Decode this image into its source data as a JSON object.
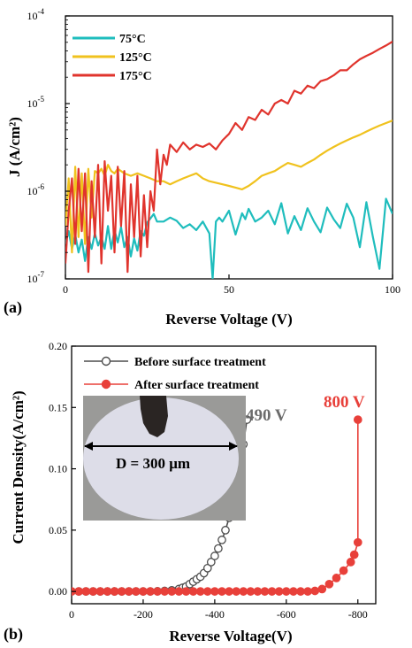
{
  "chart_data": [
    {
      "type": "line",
      "panel_label": "(a)",
      "xlabel": "Reverse Voltage (V)",
      "ylabel": "J (A/cm²)",
      "xlim": [
        0,
        100
      ],
      "ylim": [
        1e-07,
        0.0001
      ],
      "yscale": "log",
      "x_ticks": [
        "0",
        "50",
        "100"
      ],
      "x_tick_values": [
        0,
        50,
        100
      ],
      "y_ticks": [
        {
          "base": "10",
          "exp": "-7",
          "value": 1e-07
        },
        {
          "base": "10",
          "exp": "-6",
          "value": 1e-06
        },
        {
          "base": "10",
          "exp": "-5",
          "value": 1e-05
        },
        {
          "base": "10",
          "exp": "-4",
          "value": 0.0001
        }
      ],
      "legend_position": "top-left",
      "series": [
        {
          "name": "75°C",
          "color": "#1fbdbd",
          "x": [
            0,
            1,
            2,
            3,
            4,
            5,
            6,
            7,
            8,
            9,
            10,
            11,
            12,
            13,
            14,
            15,
            16,
            17,
            18,
            19,
            20,
            21,
            22,
            23,
            24,
            25,
            26,
            27,
            28,
            30,
            32,
            34,
            36,
            38,
            40,
            42,
            44,
            45,
            46,
            47,
            48,
            50,
            52,
            54,
            55,
            56,
            58,
            60,
            62,
            64,
            66,
            68,
            70,
            72,
            74,
            76,
            78,
            80,
            82,
            84,
            86,
            88,
            90,
            92,
            94,
            96,
            98,
            100
          ],
          "y": [
            2.5e-07,
            3.5e-07,
            2.2e-07,
            3.2e-07,
            2e-07,
            2.8e-07,
            1.6e-07,
            3e-07,
            2.2e-07,
            3.3e-07,
            2.4e-07,
            3e-07,
            2.2e-07,
            4e-07,
            2.2e-07,
            3.6e-07,
            2.6e-07,
            3.9e-07,
            2.3e-07,
            3e-07,
            1.8e-07,
            2.9e-07,
            2.1e-07,
            3.5e-07,
            3.1e-07,
            4.4e-07,
            4.9e-07,
            5.5e-07,
            4.5e-07,
            4.5e-07,
            5e-07,
            4.6e-07,
            3.8e-07,
            4.2e-07,
            3.6e-07,
            4.5e-07,
            3.3e-07,
            1e-07,
            4.5e-07,
            5e-07,
            4.5e-07,
            6e-07,
            3.2e-07,
            5.6e-07,
            4.8e-07,
            6.3e-07,
            4.5e-07,
            5e-07,
            6e-07,
            4.2e-07,
            7.3e-07,
            3.3e-07,
            5.2e-07,
            3.6e-07,
            6.4e-07,
            4.5e-07,
            3.4e-07,
            6.5e-07,
            4.8e-07,
            3.8e-07,
            7.2e-07,
            5e-07,
            2.3e-07,
            7.5e-07,
            3e-07,
            1.3e-07,
            8.2e-07,
            5.5e-07
          ]
        },
        {
          "name": "125°C",
          "color": "#f0c21e",
          "x": [
            0,
            1,
            2,
            3,
            4,
            5,
            6,
            7,
            8,
            9,
            10,
            11,
            12,
            13,
            14,
            15,
            16,
            18,
            20,
            22,
            24,
            26,
            28,
            30,
            32,
            34,
            36,
            38,
            40,
            42,
            44,
            46,
            48,
            50,
            52,
            54,
            56,
            58,
            60,
            62,
            64,
            66,
            68,
            70,
            72,
            74,
            76,
            78,
            80,
            82,
            84,
            86,
            88,
            90,
            92,
            94,
            96,
            98,
            100
          ],
          "y": [
            4e-07,
            1.4e-06,
            2e-07,
            1.9e-06,
            3e-07,
            1.6e-06,
            2.5e-07,
            1.8e-06,
            5e-07,
            1.7e-06,
            1.6e-06,
            1.8e-06,
            1.5e-06,
            2e-06,
            1.7e-06,
            1.6e-06,
            1.8e-06,
            1.6e-06,
            1.5e-06,
            1.6e-06,
            1.5e-06,
            1.4e-06,
            1.3e-06,
            1.3e-06,
            1.2e-06,
            1.3e-06,
            1.4e-06,
            1.5e-06,
            1.6e-06,
            1.4e-06,
            1.3e-06,
            1.25e-06,
            1.2e-06,
            1.15e-06,
            1.1e-06,
            1.05e-06,
            1.15e-06,
            1.3e-06,
            1.5e-06,
            1.6e-06,
            1.7e-06,
            1.9e-06,
            2.1e-06,
            2e-06,
            1.9e-06,
            2.1e-06,
            2.3e-06,
            2.6e-06,
            2.9e-06,
            3.2e-06,
            3.5e-06,
            3.8e-06,
            4.1e-06,
            4.4e-06,
            4.8e-06,
            5.2e-06,
            5.6e-06,
            6e-06,
            6.4e-06
          ]
        },
        {
          "name": "175°C",
          "color": "#e0342d",
          "x": [
            0,
            1,
            2,
            3,
            4,
            5,
            6,
            7,
            8,
            9,
            10,
            11,
            12,
            13,
            14,
            15,
            16,
            17,
            18,
            19,
            20,
            21,
            22,
            23,
            24,
            25,
            26,
            27,
            28,
            29,
            30,
            31,
            32,
            34,
            36,
            38,
            40,
            42,
            44,
            46,
            48,
            50,
            52,
            54,
            56,
            58,
            60,
            62,
            64,
            66,
            68,
            70,
            72,
            74,
            76,
            78,
            80,
            82,
            84,
            86,
            88,
            90,
            92,
            94,
            96,
            98,
            100
          ],
          "y": [
            1.5e-07,
            6e-07,
            1.4e-06,
            2.5e-07,
            1.8e-06,
            3.5e-07,
            1.6e-06,
            1.2e-07,
            1.3e-06,
            3e-07,
            2e-06,
            1.5e-07,
            2.2e-06,
            6e-07,
            1.5e-06,
            2e-07,
            1.9e-06,
            4e-07,
            1.7e-06,
            1.2e-07,
            1.2e-06,
            3e-07,
            1.5e-06,
            1.8e-07,
            9e-07,
            2.3e-07,
            1e-06,
            6e-07,
            3e-06,
            1.2e-06,
            2.6e-06,
            2e-06,
            3.4e-06,
            2.8e-06,
            3.6e-06,
            3e-06,
            3.4e-06,
            3.2e-06,
            3.5e-06,
            3e-06,
            3.8e-06,
            4.5e-06,
            6e-06,
            5e-06,
            7e-06,
            6.5e-06,
            8.5e-06,
            7.5e-06,
            1e-05,
            1.1e-05,
            1e-05,
            1.4e-05,
            1.3e-05,
            1.6e-05,
            1.5e-05,
            1.8e-05,
            1.9e-05,
            2.1e-05,
            2.4e-05,
            2.4e-05,
            2.8e-05,
            3.2e-05,
            3.5e-05,
            3.8e-05,
            4.2e-05,
            4.6e-05,
            5.1e-05
          ]
        }
      ]
    },
    {
      "type": "scatter",
      "panel_label": "(b)",
      "xlabel": "Reverse Voltage(V)",
      "ylabel": "Current Density(A/cm²)",
      "xlim": [
        0,
        -850
      ],
      "ylim": [
        -0.01,
        0.2
      ],
      "x_ticks": [
        "0",
        "-200",
        "-400",
        "-600",
        "-800"
      ],
      "x_tick_values": [
        0,
        -200,
        -400,
        -600,
        -800
      ],
      "y_ticks": [
        "0.00",
        "0.05",
        "0.10",
        "0.15",
        "0.20"
      ],
      "y_tick_values": [
        0,
        0.05,
        0.1,
        0.15,
        0.2
      ],
      "legend_position": "top-right",
      "series": [
        {
          "name": "Before surface treatment",
          "color": "#4d4d4d",
          "marker": "open-circle",
          "x": [
            0,
            -20,
            -40,
            -60,
            -80,
            -100,
            -120,
            -140,
            -160,
            -180,
            -200,
            -220,
            -240,
            -260,
            -280,
            -300,
            -310,
            -320,
            -330,
            -340,
            -350,
            -360,
            -370,
            -380,
            -390,
            -400,
            -410,
            -420,
            -430,
            -440,
            -450,
            -460,
            -470,
            -480,
            -490
          ],
          "y": [
            0,
            0,
            0,
            0,
            0,
            0,
            0,
            0,
            0,
            0,
            0,
            0,
            0.0002,
            0.0005,
            0.001,
            0.002,
            0.003,
            0.004,
            0.006,
            0.008,
            0.01,
            0.012,
            0.015,
            0.019,
            0.024,
            0.029,
            0.035,
            0.042,
            0.05,
            0.06,
            0.07,
            0.082,
            0.097,
            0.12,
            0.14
          ]
        },
        {
          "name": "After surface treatment",
          "color": "#e8403a",
          "marker": "filled-circle",
          "x": [
            0,
            -20,
            -40,
            -60,
            -80,
            -100,
            -120,
            -140,
            -160,
            -180,
            -200,
            -220,
            -240,
            -260,
            -280,
            -300,
            -320,
            -340,
            -360,
            -380,
            -400,
            -420,
            -440,
            -460,
            -480,
            -500,
            -520,
            -540,
            -560,
            -580,
            -600,
            -620,
            -640,
            -660,
            -680,
            -700,
            -720,
            -740,
            -760,
            -780,
            -790,
            -800,
            -800
          ],
          "y": [
            0,
            0,
            0,
            0,
            0,
            0,
            0,
            0,
            0,
            0,
            0,
            0,
            0,
            0,
            0,
            0,
            0,
            0,
            0,
            0,
            0,
            0,
            0,
            0,
            0,
            0,
            0,
            0,
            0,
            0,
            0,
            0,
            0,
            0,
            0.0005,
            0.002,
            0.006,
            0.011,
            0.017,
            0.024,
            0.03,
            0.04,
            0.14
          ]
        }
      ],
      "annotations": [
        {
          "text": "490 V",
          "color": "#6b6b6b"
        },
        {
          "text": "800 V",
          "color": "#e8403a"
        }
      ],
      "inset": {
        "description_label": "D = 300 μm",
        "colors": {
          "background": "#9a9a98",
          "disk": "#dddde8",
          "probe": "#2a2523"
        }
      }
    }
  ]
}
